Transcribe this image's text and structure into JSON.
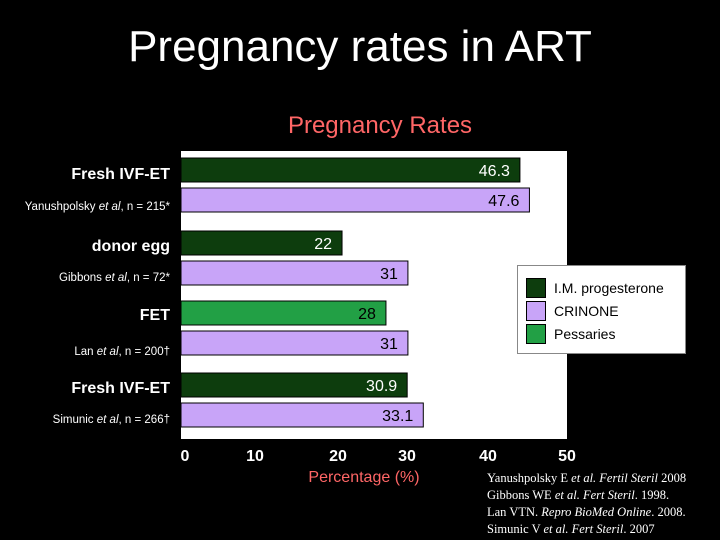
{
  "slide": {
    "title": "Pregnancy rates in ART"
  },
  "chart_data": {
    "type": "bar",
    "orientation": "horizontal",
    "title": "Pregnancy Rates",
    "xlabel": "Percentage (%)",
    "xlim": [
      0,
      50
    ],
    "xticks": [
      "0",
      "10",
      "20",
      "30",
      "40",
      "50"
    ],
    "groups": [
      {
        "label": "Fresh IVF-ET",
        "study_prefix": "Yanushpolsky ",
        "study_etal": "et al",
        "study_suffix": ", n = 215*"
      },
      {
        "label": "donor egg",
        "study_prefix": "Gibbons ",
        "study_etal": "et al",
        "study_suffix": ", n = 72*"
      },
      {
        "label": "FET",
        "study_prefix": "Lan ",
        "study_etal": "et al",
        "study_suffix": ", n = 200†"
      },
      {
        "label": "Fresh IVF-ET",
        "study_prefix": "Simunic ",
        "study_etal": "et al",
        "study_suffix": ", n = 266†"
      }
    ],
    "bars": [
      {
        "group": 0,
        "series": "I.M. progesterone",
        "value": 46.3,
        "label": "46.3"
      },
      {
        "group": 0,
        "series": "CRINONE",
        "value": 47.6,
        "label": "47.6"
      },
      {
        "group": 1,
        "series": "I.M. progesterone",
        "value": 22,
        "label": "22"
      },
      {
        "group": 1,
        "series": "CRINONE",
        "value": 31,
        "label": "31"
      },
      {
        "group": 2,
        "series": "Pessaries",
        "value": 28,
        "label": "28"
      },
      {
        "group": 2,
        "series": "CRINONE",
        "value": 31,
        "label": "31"
      },
      {
        "group": 3,
        "series": "I.M. progesterone",
        "value": 30.9,
        "label": "30.9"
      },
      {
        "group": 3,
        "series": "CRINONE",
        "value": 33.1,
        "label": "33.1"
      }
    ],
    "legend": [
      {
        "name": "I.M. progesterone",
        "color": "#0d3d0d"
      },
      {
        "name": "CRINONE",
        "color": "#c8a4f8"
      },
      {
        "name": "Pessaries",
        "color": "#22a045"
      }
    ],
    "legend_position": "right"
  },
  "references": {
    "lines": [
      {
        "prefix": "Yanushpolsky E ",
        "italic": "et al. Fertil Steril",
        "suffix": " 2008"
      },
      {
        "prefix": "Gibbons WE ",
        "italic": "et al. Fert Steril",
        "suffix": ". 1998."
      },
      {
        "prefix": "Lan VTN. ",
        "italic": "Repro BioMed Online",
        "suffix": ". 2008."
      },
      {
        "prefix": "Simunic V ",
        "italic": "et al. Fert Steril",
        "suffix": ". 2007"
      }
    ]
  }
}
